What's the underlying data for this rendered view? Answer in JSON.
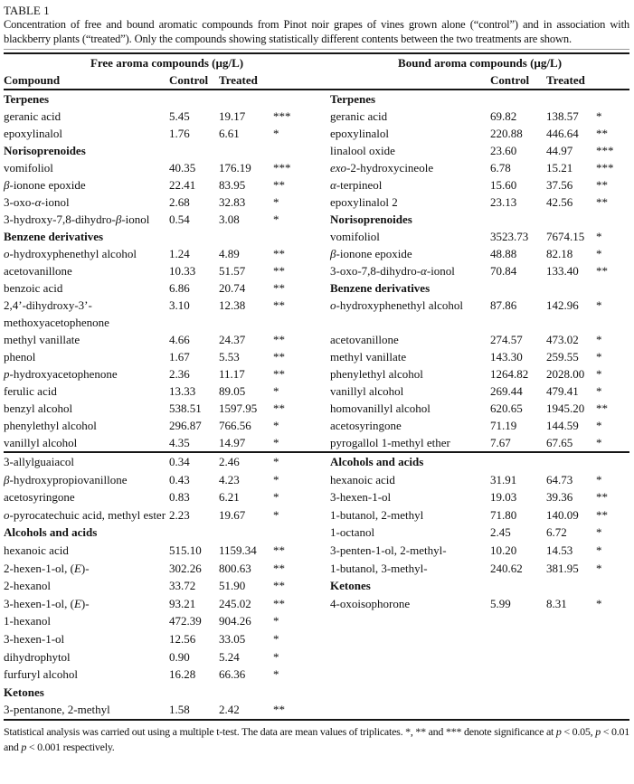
{
  "page": {
    "table_label": "TABLE 1",
    "caption": "Concentration of free and bound aromatic compounds from Pinot noir grapes of vines grown alone (“control”) and in association with blackberry plants (“treated”). Only the compounds showing statistically different contents between the two treatments are shown.",
    "footnote": "Statistical analysis was carried out using a multiple t-test. The data are mean values of triplicates. *, ** and *** denote significance at p < 0.05, p < 0.01 and p < 0.001 respectively."
  },
  "table": {
    "group_headers": {
      "free": "Free aroma compounds (µg/L)",
      "bound": "Bound aroma compounds (µg/L)"
    },
    "column_headers": {
      "compound": "Compound",
      "control": "Control",
      "treated": "Treated"
    },
    "rows": [
      {
        "free": {
          "cat": "Terpenes"
        },
        "bound": {
          "cat": "Terpenes"
        }
      },
      {
        "free": {
          "name": "geranic acid",
          "control": "5.45",
          "treated": "19.17",
          "sig": "***"
        },
        "bound": {
          "name": "geranic acid",
          "control": "69.82",
          "treated": "138.57",
          "sig": "*"
        }
      },
      {
        "free": {
          "name": "epoxylinalol",
          "control": "1.76",
          "treated": "6.61",
          "sig": "*"
        },
        "bound": {
          "name": "epoxylinalol",
          "control": "220.88",
          "treated": "446.64",
          "sig": "**"
        }
      },
      {
        "free": {
          "cat": "Norisoprenoides"
        },
        "bound": {
          "name": "linalool oxide",
          "control": "23.60",
          "treated": "44.97",
          "sig": "***"
        }
      },
      {
        "free": {
          "name": "vomifoliol",
          "control": "40.35",
          "treated": "176.19",
          "sig": "***"
        },
        "bound": {
          "name": "exo-2-hydroxycineole",
          "control": "6.78",
          "treated": "15.21",
          "sig": "***"
        }
      },
      {
        "free": {
          "name": "β-ionone epoxide",
          "control": "22.41",
          "treated": "83.95",
          "sig": "**"
        },
        "bound": {
          "name": "α-terpineol",
          "control": "15.60",
          "treated": "37.56",
          "sig": "**"
        }
      },
      {
        "free": {
          "name": "3-oxo-α-ionol",
          "control": "2.68",
          "treated": "32.83",
          "sig": "*"
        },
        "bound": {
          "name": "epoxylinalol 2",
          "control": "23.13",
          "treated": "42.56",
          "sig": "**"
        }
      },
      {
        "free": {
          "name": "3-hydroxy-7,8-dihydro-β-ionol",
          "control": "0.54",
          "treated": "3.08",
          "sig": "*"
        },
        "bound": {
          "cat": "Norisoprenoides"
        }
      },
      {
        "free": {
          "cat": "Benzene derivatives"
        },
        "bound": {
          "name": "vomifoliol",
          "control": "3523.73",
          "treated": "7674.15",
          "sig": "*"
        }
      },
      {
        "free": {
          "name": "o-hydroxyphenethyl alcohol",
          "control": "1.24",
          "treated": "4.89",
          "sig": "**"
        },
        "bound": {
          "name": "β-ionone epoxide",
          "control": "48.88",
          "treated": "82.18",
          "sig": "*"
        }
      },
      {
        "free": {
          "name": "acetovanillone",
          "control": "10.33",
          "treated": "51.57",
          "sig": "**"
        },
        "bound": {
          "name": "3-oxo-7,8-dihydro-α-ionol",
          "control": "70.84",
          "treated": "133.40",
          "sig": "**"
        }
      },
      {
        "free": {
          "name": "benzoic acid",
          "control": "6.86",
          "treated": "20.74",
          "sig": "**"
        },
        "bound": {
          "cat": "Benzene derivatives"
        }
      },
      {
        "free": {
          "name": "2,4’-dihydroxy-3’-methoxyacetophenone",
          "control": "3.10",
          "treated": "12.38",
          "sig": "**"
        },
        "bound": {
          "name": "o-hydroxyphenethyl alcohol",
          "control": "87.86",
          "treated": "142.96",
          "sig": "*"
        }
      },
      {
        "free": {
          "name": "methyl vanillate",
          "control": "4.66",
          "treated": "24.37",
          "sig": "**"
        },
        "bound": {
          "name": "acetovanillone",
          "control": "274.57",
          "treated": "473.02",
          "sig": "*"
        }
      },
      {
        "free": {
          "name": "phenol",
          "control": "1.67",
          "treated": "5.53",
          "sig": "**"
        },
        "bound": {
          "name": "methyl vanillate",
          "control": "143.30",
          "treated": "259.55",
          "sig": "*"
        }
      },
      {
        "free": {
          "name": "p-hydroxyacetophenone",
          "control": "2.36",
          "treated": "11.17",
          "sig": "**"
        },
        "bound": {
          "name": "phenylethyl alcohol",
          "control": "1264.82",
          "treated": "2028.00",
          "sig": "*"
        }
      },
      {
        "free": {
          "name": "ferulic acid",
          "control": "13.33",
          "treated": "89.05",
          "sig": "*"
        },
        "bound": {
          "name": "vanillyl alcohol",
          "control": "269.44",
          "treated": "479.41",
          "sig": "*"
        }
      },
      {
        "free": {
          "name": "benzyl alcohol",
          "control": "538.51",
          "treated": "1597.95",
          "sig": "**"
        },
        "bound": {
          "name": "homovanillyl alcohol",
          "control": "620.65",
          "treated": "1945.20",
          "sig": "**"
        }
      },
      {
        "free": {
          "name": "phenylethyl alcohol",
          "control": "296.87",
          "treated": "766.56",
          "sig": "*"
        },
        "bound": {
          "name": "acetosyringone",
          "control": "71.19",
          "treated": "144.59",
          "sig": "*"
        }
      },
      {
        "free": {
          "name": "vanillyl alcohol",
          "control": "4.35",
          "treated": "14.97",
          "sig": "*"
        },
        "bound": {
          "name": "pyrogallol 1-methyl ether",
          "control": "7.67",
          "treated": "67.65",
          "sig": "*"
        },
        "divider_below": true
      },
      {
        "free": {
          "name": "3-allylguaiacol",
          "control": "0.34",
          "treated": "2.46",
          "sig": "*"
        },
        "bound": {
          "cat": "Alcohols and acids"
        }
      },
      {
        "free": {
          "name": "β-hydroxypropiovanillone",
          "control": "0.43",
          "treated": "4.23",
          "sig": "*"
        },
        "bound": {
          "name": "hexanoic acid",
          "control": "31.91",
          "treated": "64.73",
          "sig": "*"
        }
      },
      {
        "free": {
          "name": "acetosyringone",
          "control": "0.83",
          "treated": "6.21",
          "sig": "*"
        },
        "bound": {
          "name": "3-hexen-1-ol",
          "control": "19.03",
          "treated": "39.36",
          "sig": "**"
        }
      },
      {
        "free": {
          "name": "o-pyrocatechuic acid, methyl ester",
          "control": "2.23",
          "treated": "19.67",
          "sig": "*"
        },
        "bound": {
          "name": "1-butanol, 2-methyl",
          "control": "71.80",
          "treated": "140.09",
          "sig": "**"
        }
      },
      {
        "free": {
          "cat": "Alcohols and acids"
        },
        "bound": {
          "name": "1-octanol",
          "control": "2.45",
          "treated": "6.72",
          "sig": "*"
        }
      },
      {
        "free": {
          "name": "hexanoic acid",
          "control": "515.10",
          "treated": "1159.34",
          "sig": "**"
        },
        "bound": {
          "name": "3-penten-1-ol, 2-methyl-",
          "control": "10.20",
          "treated": "14.53",
          "sig": "*"
        }
      },
      {
        "free": {
          "name": "2-hexen-1-ol, (E)-",
          "control": "302.26",
          "treated": "800.63",
          "sig": "**"
        },
        "bound": {
          "name": "1-butanol, 3-methyl-",
          "control": "240.62",
          "treated": "381.95",
          "sig": "*"
        }
      },
      {
        "free": {
          "name": "2-hexanol",
          "control": "33.72",
          "treated": "51.90",
          "sig": "**"
        },
        "bound": {
          "cat": "Ketones"
        }
      },
      {
        "free": {
          "name": "3-hexen-1-ol, (E)-",
          "control": "93.21",
          "treated": "245.02",
          "sig": "**"
        },
        "bound": {
          "name": "4-oxoisophorone",
          "control": "5.99",
          "treated": "8.31",
          "sig": "*"
        }
      },
      {
        "free": {
          "name": "1-hexanol",
          "control": "472.39",
          "treated": "904.26",
          "sig": "*"
        },
        "bound": null
      },
      {
        "free": {
          "name": "3-hexen-1-ol",
          "control": "12.56",
          "treated": "33.05",
          "sig": "*"
        },
        "bound": null
      },
      {
        "free": {
          "name": "dihydrophytol",
          "control": "0.90",
          "treated": "5.24",
          "sig": "*"
        },
        "bound": null
      },
      {
        "free": {
          "name": "furfuryl alcohol",
          "control": "16.28",
          "treated": "66.36",
          "sig": "*"
        },
        "bound": null
      },
      {
        "free": {
          "cat": "Ketones"
        },
        "bound": null
      },
      {
        "free": {
          "name": "3-pentanone, 2-methyl",
          "control": "1.58",
          "treated": "2.42",
          "sig": "**"
        },
        "bound": null
      }
    ]
  }
}
